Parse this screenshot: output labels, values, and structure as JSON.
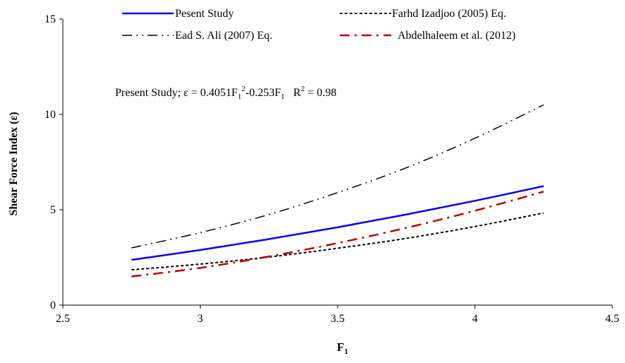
{
  "chart_data": {
    "type": "line",
    "xlabel": "F",
    "xlabel_sub": "1",
    "ylabel": "Shear Force Index (ε)",
    "xlim": [
      2.5,
      4.5
    ],
    "ylim": [
      0,
      15
    ],
    "x_ticks": [
      "2.5",
      "3",
      "3.5",
      "4",
      "4.5"
    ],
    "y_ticks": [
      "0",
      "5",
      "10",
      "15"
    ],
    "grid": false,
    "legend_position": "top",
    "annotation": {
      "prefix": "Present Study; ε = 0.4051F",
      "sub1": "1",
      "sup1": "2",
      "mid": "-0.253F",
      "sub2": "1",
      "r2_prefix": "R",
      "r2_sup": "2",
      "r2_suffix": " = 0.98"
    },
    "series": [
      {
        "name": "Pesent Study",
        "color": "#0000ff",
        "dash": "solid",
        "x": [
          2.75,
          3.0,
          3.25,
          3.5,
          3.75,
          4.0,
          4.25
        ],
        "y": [
          2.37,
          2.89,
          3.46,
          4.08,
          4.75,
          5.47,
          6.24
        ]
      },
      {
        "name": "Farhd Izadjoo (2005) Eq.",
        "color": "#000000",
        "dash": "dash",
        "x": [
          2.75,
          3.0,
          3.25,
          3.5,
          3.75,
          4.0,
          4.25
        ],
        "y": [
          1.85,
          2.15,
          2.52,
          2.98,
          3.5,
          4.12,
          4.83
        ]
      },
      {
        "name": "Ead S. Ali (2007) Eq.",
        "color": "#000000",
        "dash": "dashdotdot",
        "x": [
          2.75,
          3.0,
          3.25,
          3.5,
          3.75,
          4.0,
          4.25
        ],
        "y": [
          3.0,
          3.8,
          4.75,
          5.9,
          7.2,
          8.75,
          10.5
        ]
      },
      {
        "name": "Abdelhaleem et al. (2012)",
        "color": "#c00000",
        "dash": "dashdot",
        "x": [
          2.75,
          3.0,
          3.25,
          3.5,
          3.75,
          4.0,
          4.25
        ],
        "y": [
          1.5,
          1.95,
          2.55,
          3.25,
          4.05,
          4.95,
          5.95
        ]
      }
    ]
  }
}
